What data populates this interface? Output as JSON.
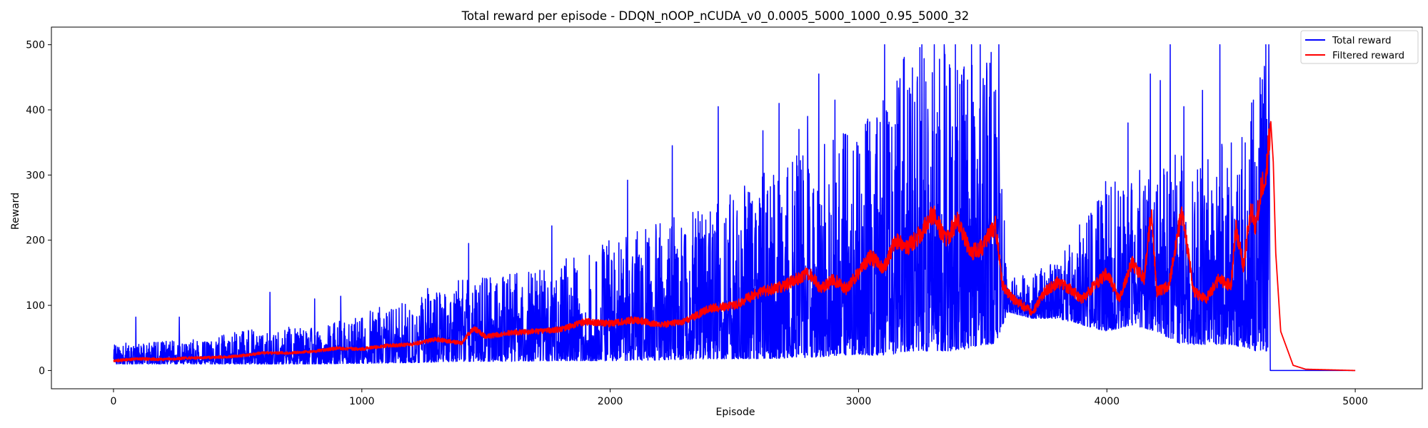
{
  "chart_data": {
    "type": "line",
    "title": "Total reward per episode - DDQN_nOOP_nCUDA_v0_0.0005_5000_1000_0.95_5000_32",
    "xlabel": "Episode",
    "ylabel": "Reward",
    "xlim": [
      -250,
      5270
    ],
    "ylim": [
      -28,
      527
    ],
    "xticks": [
      0,
      1000,
      2000,
      3000,
      4000,
      5000
    ],
    "yticks": [
      0,
      100,
      200,
      300,
      400,
      500
    ],
    "grid": false,
    "legend_position": "top-right",
    "series": [
      {
        "name": "Total reward",
        "color": "#0000ff",
        "envelope": {
          "x": [
            0,
            200,
            400,
            600,
            800,
            1000,
            1200,
            1400,
            1600,
            1800,
            2000,
            2200,
            2400,
            2600,
            2800,
            3000,
            3100,
            3200,
            3300,
            3400,
            3500,
            3550,
            3600,
            3700,
            3800,
            3900,
            4000,
            4100,
            4200,
            4300,
            4400,
            4500,
            4600,
            4650
          ],
          "low": [
            10,
            10,
            10,
            10,
            10,
            11,
            12,
            14,
            14,
            15,
            15,
            16,
            18,
            18,
            20,
            25,
            22,
            30,
            30,
            30,
            40,
            40,
            90,
            80,
            80,
            70,
            60,
            70,
            60,
            40,
            40,
            40,
            30,
            30
          ],
          "high": [
            40,
            45,
            50,
            70,
            65,
            90,
            110,
            140,
            150,
            170,
            200,
            230,
            250,
            300,
            340,
            380,
            420,
            500,
            500,
            500,
            500,
            500,
            140,
            150,
            170,
            250,
            280,
            320,
            300,
            350,
            330,
            360,
            430,
            500
          ],
          "peaks": [
            [
              50,
              42
            ],
            [
              90,
              82
            ],
            [
              265,
              82
            ],
            [
              630,
              120
            ],
            [
              810,
              110
            ],
            [
              915,
              114
            ],
            [
              1265,
              126
            ],
            [
              1430,
              195
            ],
            [
              1765,
              222
            ],
            [
              2070,
              292
            ],
            [
              2250,
              345
            ],
            [
              2435,
              405
            ],
            [
              2615,
              368
            ],
            [
              2680,
              410
            ],
            [
              2760,
              370
            ],
            [
              2795,
              390
            ],
            [
              2840,
              455
            ],
            [
              2905,
              415
            ],
            [
              3035,
              382
            ],
            [
              3105,
              500
            ],
            [
              3198,
              430
            ],
            [
              3255,
              500
            ],
            [
              3305,
              500
            ],
            [
              3345,
              500
            ],
            [
              3390,
              500
            ],
            [
              3455,
              500
            ],
            [
              3490,
              500
            ],
            [
              3520,
              360
            ],
            [
              3565,
              500
            ],
            [
              3995,
              290
            ],
            [
              4085,
              380
            ],
            [
              4175,
              455
            ],
            [
              4215,
              445
            ],
            [
              4255,
              500
            ],
            [
              4310,
              405
            ],
            [
              4385,
              430
            ],
            [
              4455,
              500
            ],
            [
              4590,
              415
            ],
            [
              4640,
              500
            ]
          ]
        },
        "tail": [
          [
            4652,
            500
          ],
          [
            4658,
            0
          ],
          [
            5000,
            0
          ]
        ]
      },
      {
        "name": "Filtered reward",
        "color": "#ff0000",
        "x": [
          0,
          100,
          200,
          300,
          400,
          500,
          600,
          700,
          800,
          900,
          1000,
          1100,
          1200,
          1300,
          1400,
          1450,
          1500,
          1600,
          1700,
          1800,
          1900,
          2000,
          2100,
          2200,
          2300,
          2400,
          2500,
          2600,
          2700,
          2750,
          2800,
          2850,
          2900,
          2950,
          3000,
          3050,
          3100,
          3150,
          3200,
          3250,
          3300,
          3350,
          3400,
          3450,
          3500,
          3550,
          3580,
          3620,
          3700,
          3750,
          3800,
          3850,
          3900,
          3950,
          4000,
          4050,
          4100,
          4150,
          4180,
          4200,
          4250,
          4280,
          4300,
          4320,
          4350,
          4400,
          4450,
          4500,
          4520,
          4550,
          4580,
          4600,
          4620,
          4640,
          4660,
          4670,
          4680,
          4700,
          4750,
          4800,
          5000
        ],
        "values": [
          15,
          18,
          17,
          19,
          20,
          22,
          27,
          27,
          29,
          34,
          33,
          38,
          40,
          48,
          42,
          65,
          52,
          58,
          60,
          63,
          75,
          72,
          78,
          70,
          75,
          95,
          100,
          120,
          130,
          140,
          150,
          125,
          140,
          125,
          150,
          175,
          155,
          200,
          190,
          210,
          240,
          200,
          230,
          180,
          190,
          225,
          130,
          110,
          90,
          120,
          135,
          125,
          110,
          130,
          150,
          110,
          165,
          140,
          250,
          120,
          130,
          200,
          240,
          200,
          120,
          110,
          140,
          130,
          220,
          160,
          250,
          220,
          280,
          300,
          382,
          320,
          180,
          60,
          8,
          2,
          0
        ]
      }
    ]
  }
}
